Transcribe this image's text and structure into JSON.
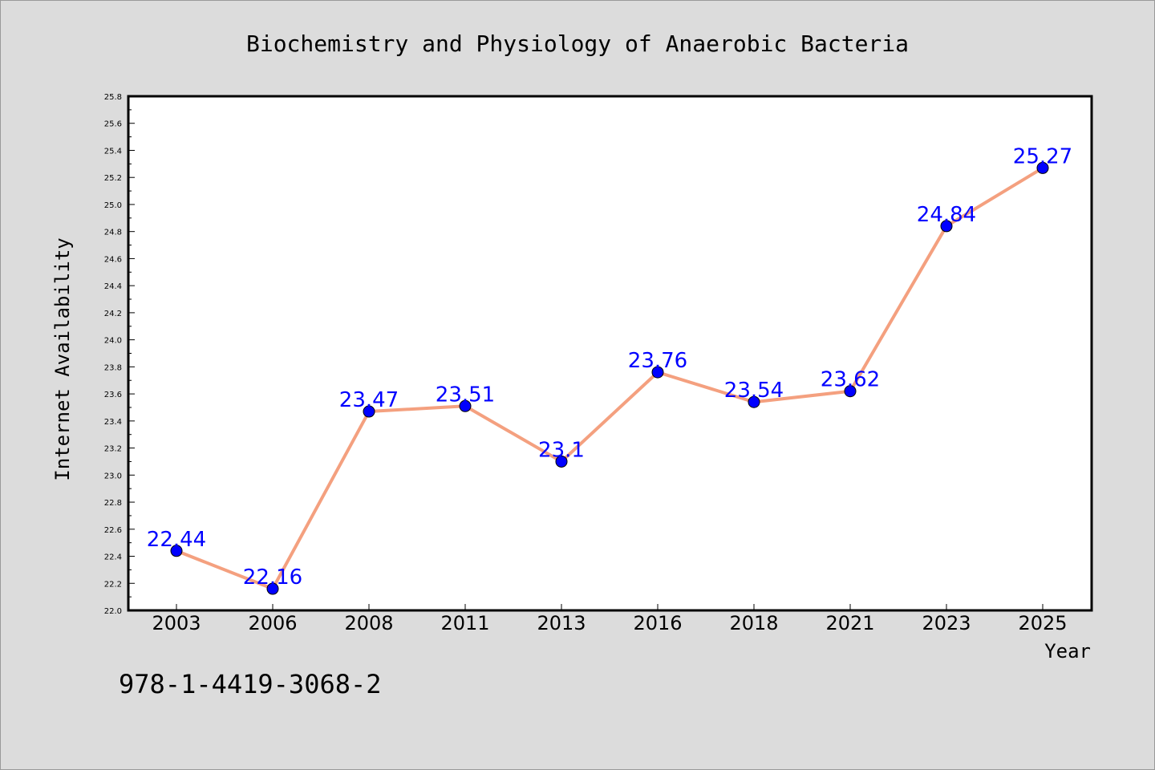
{
  "chart_data": {
    "type": "line",
    "title": "Biochemistry and Physiology of Anaerobic Bacteria",
    "xlabel": "Year",
    "ylabel": "Internet Availability",
    "categories": [
      "2003",
      "2006",
      "2008",
      "2011",
      "2013",
      "2016",
      "2018",
      "2021",
      "2023",
      "2025"
    ],
    "series": [
      {
        "values": [
          22.44,
          22.16,
          23.47,
          23.51,
          23.1,
          23.76,
          23.54,
          23.62,
          24.84,
          25.27
        ],
        "data_labels": [
          "22.44",
          "22.16",
          "23.47",
          "23.51",
          "23.1",
          "23.76",
          "23.54",
          "23.62",
          "24.84",
          "25.27"
        ]
      }
    ],
    "ylim": [
      22.0,
      25.8
    ],
    "yticks": [
      "22.0",
      "22.2",
      "22.4",
      "22.6",
      "22.8",
      "23.0",
      "23.2",
      "23.4",
      "23.6",
      "23.8",
      "24.0",
      "24.2",
      "24.4",
      "24.6",
      "24.8",
      "25.0",
      "25.2",
      "25.4",
      "25.6",
      "25.8"
    ],
    "grid": false,
    "legend": "none",
    "colors": {
      "line": "#f4a07f",
      "marker": "#0000ff",
      "data_label": "#0000ff",
      "background": "#dcdcdc",
      "plot_background": "#ffffff"
    }
  },
  "footnote": "978-1-4419-3068-2"
}
